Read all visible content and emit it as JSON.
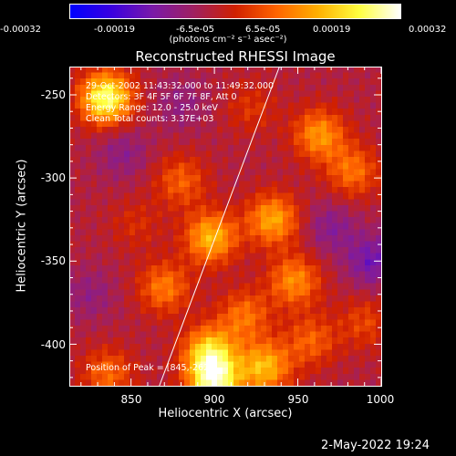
{
  "colorbar": {
    "tick_labels": [
      "-0.00032",
      "-0.00019",
      "-6.5e-05",
      "6.5e-05",
      "0.00019",
      "0.00032"
    ],
    "units": "(photons cm⁻² s⁻¹ asec⁻²)",
    "stops": [
      "#0000ff",
      "#3a00e0",
      "#7a1aa8",
      "#a02060",
      "#d02000",
      "#ff6400",
      "#ffb000",
      "#ffff40",
      "#ffffff"
    ]
  },
  "chart_data": {
    "type": "heatmap",
    "title": "Reconstructed RHESSI Image",
    "xlabel": "Heliocentric X (arcsec)",
    "ylabel": "Heliocentric Y (arcsec)",
    "xlim": [
      813,
      1000
    ],
    "ylim": [
      -425,
      -233
    ],
    "x_ticks": [
      850,
      900,
      950,
      1000
    ],
    "y_ticks": [
      -250,
      -300,
      -350,
      -400
    ],
    "limb_line": [
      {
        "x": 867,
        "y": -425
      },
      {
        "x": 939,
        "y": -233
      }
    ],
    "peak": {
      "x": 845,
      "y": -262
    },
    "hot_spots": [
      {
        "x": 835,
        "y": -252,
        "value": 0.00032
      },
      {
        "x": 900,
        "y": -423,
        "value": 0.0003
      },
      {
        "x": 897,
        "y": -405,
        "value": 0.00025
      },
      {
        "x": 930,
        "y": -414,
        "value": 0.00022
      },
      {
        "x": 935,
        "y": -325,
        "value": 0.0002
      },
      {
        "x": 898,
        "y": -336,
        "value": 0.00022
      },
      {
        "x": 963,
        "y": -274,
        "value": 0.00018
      },
      {
        "x": 880,
        "y": -302,
        "value": 0.00012
      },
      {
        "x": 948,
        "y": -362,
        "value": 0.00017
      },
      {
        "x": 918,
        "y": -383,
        "value": 0.00014
      },
      {
        "x": 983,
        "y": -296,
        "value": 0.00014
      },
      {
        "x": 836,
        "y": -418,
        "value": 0.00013
      },
      {
        "x": 870,
        "y": -366,
        "value": 0.00015
      },
      {
        "x": 958,
        "y": -398,
        "value": 0.00012
      },
      {
        "x": 990,
        "y": -387,
        "value": 9e-05
      },
      {
        "x": 853,
        "y": -328,
        "value": 6e-05
      },
      {
        "x": 922,
        "y": -258,
        "value": 7e-05
      }
    ],
    "cold_spots": [
      {
        "x": 995,
        "y": -350,
        "value": -0.00012
      },
      {
        "x": 845,
        "y": -285,
        "value": -7e-05
      },
      {
        "x": 970,
        "y": -330,
        "value": -8e-05
      },
      {
        "x": 880,
        "y": -255,
        "value": -6e-05
      },
      {
        "x": 825,
        "y": -370,
        "value": -6e-05
      }
    ]
  },
  "info_lines": [
    "29-Oct-2002 11:43:32.000 to 11:49:32.000",
    "Detectors: 3F 4F 5F 6F 7F 8F, Att 0",
    "Energy Range: 12.0 - 25.0 keV",
    "Clean      Total counts: 3.37E+03"
  ],
  "peak_label": "Position of Peak = [845,-262]",
  "footer_date": "2-May-2022 19:24"
}
